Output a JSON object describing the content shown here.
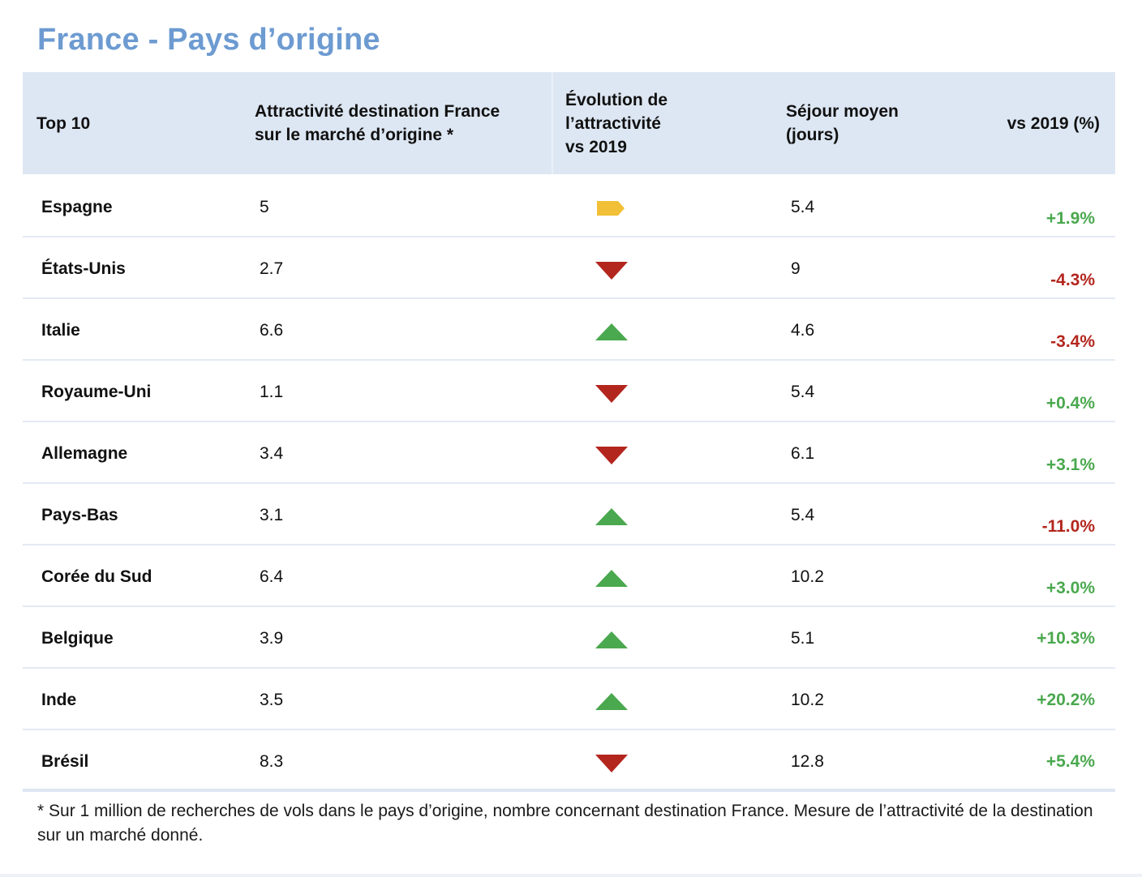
{
  "title": "France - Pays d’origine",
  "header": {
    "top": "Top 10",
    "attractivite": "Attractivité destination France\nsur le marché d’origine *",
    "evolution": "Évolution de\nl’attractivité\n vs 2019",
    "sejour": "Séjour moyen\n(jours)",
    "vs2019": "vs 2019 (%)"
  },
  "rows": [
    {
      "country": "Espagne",
      "attractivite": "5",
      "trend": "flat",
      "sejour": "5.4",
      "vs2019": "+1.9%",
      "vs_sign": "pos"
    },
    {
      "country": "États-Unis",
      "attractivite": "2.7",
      "trend": "down",
      "sejour": "9",
      "vs2019": "-4.3%",
      "vs_sign": "neg"
    },
    {
      "country": "Italie",
      "attractivite": "6.6",
      "trend": "up",
      "sejour": "4.6",
      "vs2019": "-3.4%",
      "vs_sign": "neg"
    },
    {
      "country": "Royaume-Uni",
      "attractivite": "1.1",
      "trend": "down",
      "sejour": "5.4",
      "vs2019": "+0.4%",
      "vs_sign": "pos"
    },
    {
      "country": "Allemagne",
      "attractivite": "3.4",
      "trend": "down",
      "sejour": "6.1",
      "vs2019": "+3.1%",
      "vs_sign": "pos"
    },
    {
      "country": "Pays-Bas",
      "attractivite": "3.1",
      "trend": "up",
      "sejour": "5.4",
      "vs2019": "-11.0%",
      "vs_sign": "neg"
    },
    {
      "country": "Corée du Sud",
      "attractivite": "6.4",
      "trend": "up",
      "sejour": "10.2",
      "vs2019": "+3.0%",
      "vs_sign": "pos"
    },
    {
      "country": "Belgique",
      "attractivite": "3.9",
      "trend": "up",
      "sejour": "5.1",
      "vs2019": "+10.3%",
      "vs_sign": "pos"
    },
    {
      "country": "Inde",
      "attractivite": "3.5",
      "trend": "up",
      "sejour": "10.2",
      "vs2019": "+20.2%",
      "vs_sign": "pos"
    },
    {
      "country": "Brésil",
      "attractivite": "8.3",
      "trend": "down",
      "sejour": "12.8",
      "vs2019": "+5.4%",
      "vs_sign": "pos"
    }
  ],
  "trend_icons": {
    "up": "triangle-up-icon",
    "down": "triangle-down-icon",
    "flat": "flag-right-icon"
  },
  "colors": {
    "title": "#6d9bd1",
    "header_bg": "#dde7f3",
    "positive": "#4aa84e",
    "negative": "#b3261e",
    "flat": "#f2c037"
  },
  "footnote": "* Sur 1 million de recherches de vols dans le pays d’origine, nombre concernant destination France. Mesure de l’attractivité de la destination sur un marché donné."
}
